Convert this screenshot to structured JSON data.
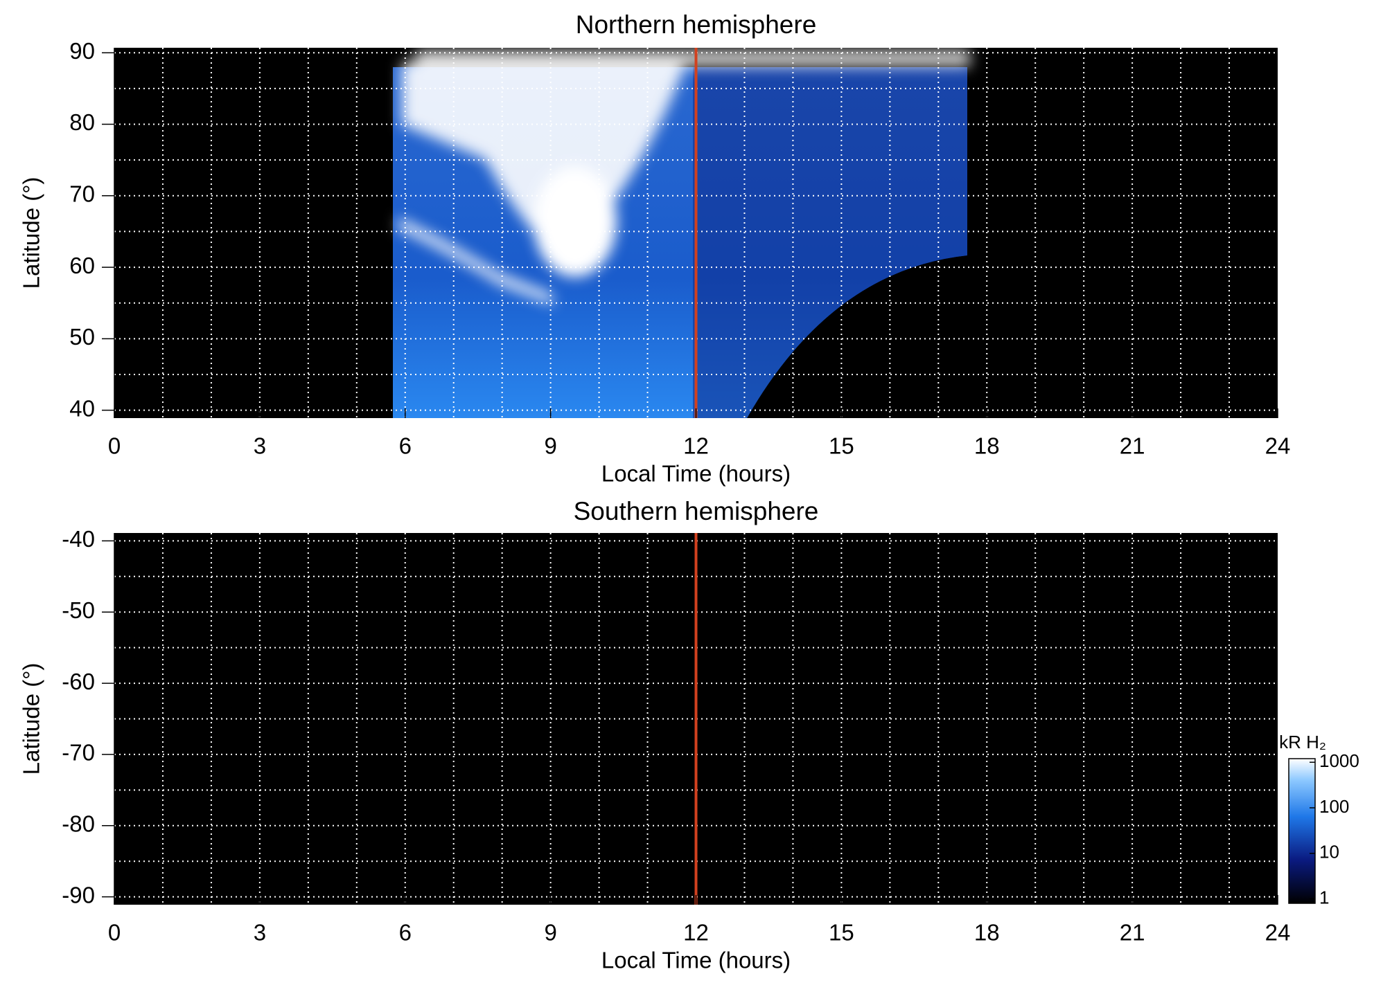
{
  "chart_data": [
    {
      "type": "heatmap",
      "title": "Northern hemisphere",
      "x_label": "Local Time (hours)",
      "y_label": "Latitude (°)",
      "xlim": [
        0,
        24
      ],
      "xticks": [
        0,
        3,
        6,
        9,
        12,
        15,
        18,
        21,
        24
      ],
      "xgrid": [
        1,
        2,
        3,
        4,
        5,
        6,
        7,
        8,
        9,
        10,
        11,
        12,
        13,
        14,
        15,
        16,
        17,
        18,
        19,
        20,
        21,
        22,
        23
      ],
      "ylim": [
        38.9,
        90.7
      ],
      "yticks": [
        40,
        50,
        60,
        70,
        80,
        90
      ],
      "ygrid": [
        40,
        45,
        50,
        55,
        60,
        65,
        70,
        75,
        80,
        85,
        90
      ],
      "marker_line": {
        "x": 12,
        "color": "#d2411f"
      }
    },
    {
      "type": "heatmap",
      "title": "Southern hemisphere",
      "x_label": "Local Time (hours)",
      "y_label": "Latitude (°)",
      "xlim": [
        0,
        24
      ],
      "xticks": [
        0,
        3,
        6,
        9,
        12,
        15,
        18,
        21,
        24
      ],
      "xgrid": [
        1,
        2,
        3,
        4,
        5,
        6,
        7,
        8,
        9,
        10,
        11,
        12,
        13,
        14,
        15,
        16,
        17,
        18,
        19,
        20,
        21,
        22,
        23
      ],
      "ylim": [
        -91.1,
        -38.9
      ],
      "yticks": [
        -40,
        -50,
        -60,
        -70,
        -80,
        -90
      ],
      "ygrid": [
        -40,
        -45,
        -50,
        -55,
        -60,
        -65,
        -70,
        -75,
        -80,
        -85,
        -90
      ],
      "marker_line": {
        "x": 12,
        "color": "#d2411f"
      },
      "colorbar": {
        "label": "kR H₂",
        "log": true,
        "lim": [
          0.8,
          1200
        ],
        "ticks": [
          1,
          10,
          100,
          1000
        ]
      }
    }
  ]
}
